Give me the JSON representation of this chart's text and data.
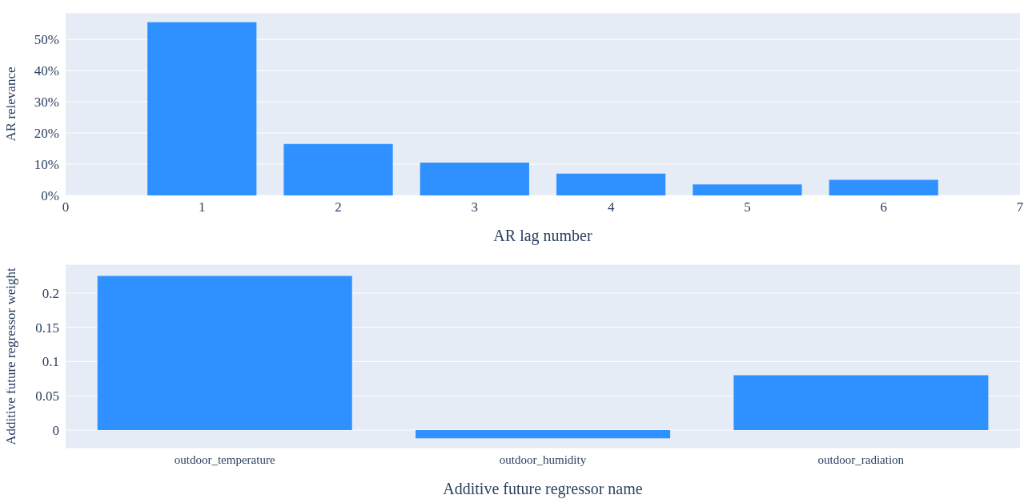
{
  "chart_data": [
    {
      "type": "bar",
      "x": [
        1,
        2,
        3,
        4,
        5,
        6
      ],
      "values": [
        55.5,
        16.5,
        10.5,
        7,
        3.5,
        5
      ],
      "color": "#2e91ff",
      "xlim": [
        0,
        7
      ],
      "xticks": [
        0,
        1,
        2,
        3,
        4,
        5,
        6,
        7
      ],
      "ylim": [
        0,
        58.5
      ],
      "yticks": [
        {
          "value": 0,
          "label": "0%"
        },
        {
          "value": 10,
          "label": "10%"
        },
        {
          "value": 20,
          "label": "20%"
        },
        {
          "value": 30,
          "label": "30%"
        },
        {
          "value": 40,
          "label": "40%"
        },
        {
          "value": 50,
          "label": "50%"
        }
      ],
      "xlabel": "AR lag number",
      "ylabel": "AR relevance",
      "grid": "y"
    },
    {
      "type": "bar",
      "categories": [
        "outdoor_temperature",
        "outdoor_humidity",
        "outdoor_radiation"
      ],
      "values": [
        0.225,
        -0.012,
        0.08
      ],
      "color": "#2e91ff",
      "ylim": [
        -0.027,
        0.242
      ],
      "yticks": [
        0,
        0.05,
        0.1,
        0.15,
        0.2
      ],
      "xlabel": "Additive future regressor name",
      "ylabel": "Additive future regressor weight",
      "grid": "y"
    }
  ]
}
